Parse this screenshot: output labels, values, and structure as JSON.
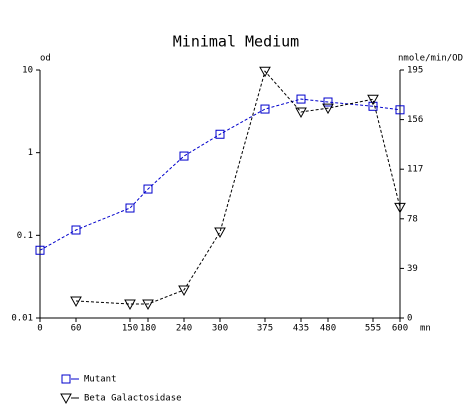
{
  "chart_data": {
    "type": "line",
    "title": "Minimal Medium",
    "y_label": "od",
    "y2_label": "nmole/min/OD",
    "x_label": "mn",
    "xlim": [
      0,
      600
    ],
    "xticks": [
      0,
      60,
      150,
      180,
      240,
      300,
      375,
      435,
      480,
      555,
      600
    ],
    "ylim": [
      0.01,
      10
    ],
    "yticks": [
      0.01,
      0.1,
      1,
      10
    ],
    "y_scale": "log",
    "y2lim": [
      0,
      195
    ],
    "y2ticks": [
      0,
      39,
      78,
      117,
      156,
      195
    ],
    "series": [
      {
        "name": "Mutant",
        "color": "#0000cc",
        "marker": "square",
        "x": [
          0,
          60,
          150,
          180,
          240,
          300,
          375,
          435,
          480,
          555,
          600
        ],
        "values": [
          0.066,
          0.116,
          0.214,
          0.363,
          0.91,
          1.67,
          3.37,
          4.45,
          4.1,
          3.64,
          3.3
        ]
      },
      {
        "name": "Beta Galactosidase",
        "color": "#000000",
        "marker": "triangle-down",
        "axis": "y2",
        "x": [
          60,
          150,
          180,
          240,
          300,
          375,
          435,
          480,
          555,
          600
        ],
        "values": [
          13.4,
          11,
          11,
          22,
          67.6,
          194,
          162,
          165,
          172,
          87
        ]
      }
    ]
  }
}
